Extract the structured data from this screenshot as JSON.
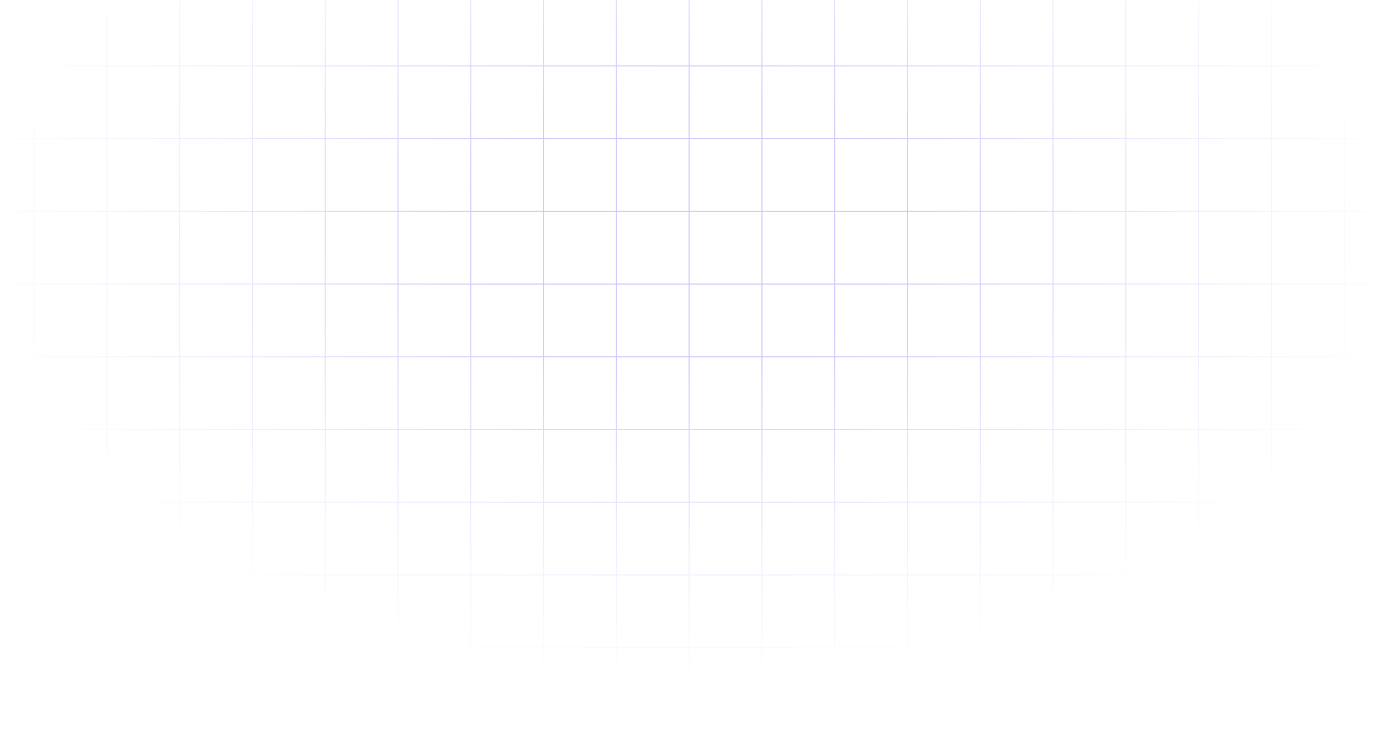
{
  "background": {
    "color": "#ffffff",
    "grid_line_color": "#c9c5fb"
  }
}
